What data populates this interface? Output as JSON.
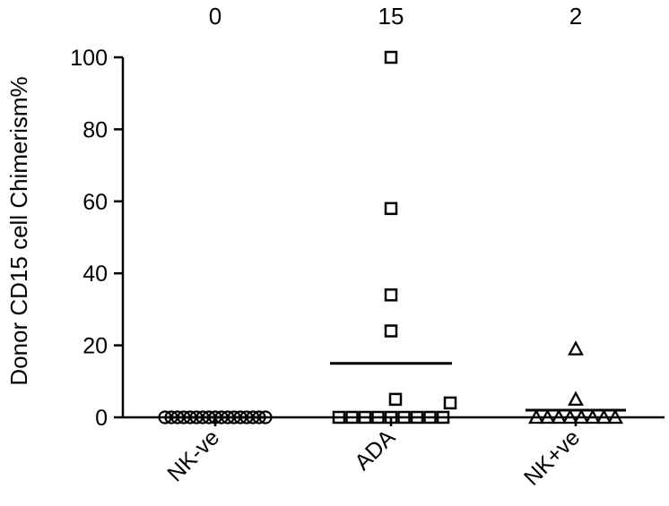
{
  "chart_data": {
    "type": "scatter",
    "title": "",
    "xlabel": "",
    "ylabel": "Donor CD15 cell Chimerism%",
    "ylim": [
      0,
      100
    ],
    "yticks": [
      0,
      20,
      40,
      60,
      80,
      100
    ],
    "grid": false,
    "legend": "none",
    "categories": [
      "NK-ve",
      "ADA",
      "NK+ve"
    ],
    "group_means": [
      0,
      15,
      2
    ],
    "series": [
      {
        "category": "NK-ve",
        "marker": "circle",
        "values": [
          0,
          0,
          0,
          0,
          0,
          0,
          0,
          0,
          0,
          0,
          0,
          0,
          0,
          0,
          0,
          0,
          0
        ]
      },
      {
        "category": "ADA",
        "marker": "square",
        "values": [
          100,
          58,
          34,
          24,
          5,
          4,
          0,
          0,
          0,
          0,
          0,
          0,
          0,
          0,
          0
        ]
      },
      {
        "category": "NK+ve",
        "marker": "triangle",
        "values": [
          19,
          5,
          0,
          0,
          0,
          0,
          0,
          0,
          0,
          0
        ]
      }
    ]
  }
}
